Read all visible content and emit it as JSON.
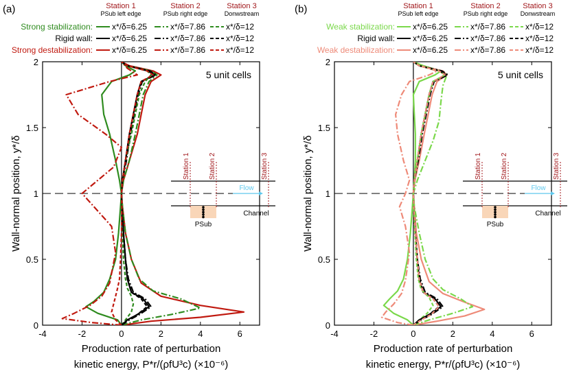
{
  "chart_data": [
    {
      "type": "line",
      "panel_label": "(a)",
      "annotation": "5 unit cells",
      "xlabel_line1": "Production rate of perturbation",
      "xlabel_line2": "kinetic energy, P*r/(ρfU³c) (×10⁻⁶)",
      "ylabel": "Wall-normal position, y*/δ",
      "xlim": [
        -4,
        7
      ],
      "ylim": [
        0,
        2
      ],
      "xticks": [
        "-4",
        "-2",
        "0",
        "2",
        "4",
        "6"
      ],
      "yticks": [
        "0",
        "0.5",
        "1",
        "1.5",
        "2"
      ],
      "stations": [
        {
          "title": "Station 1",
          "subtitle": "PSub left edge"
        },
        {
          "title": "Station 2",
          "subtitle": "PSub right edge"
        },
        {
          "title": "Station 3",
          "subtitle": "Donwstream"
        }
      ],
      "legend_rows": [
        {
          "label": "Strong stabilization:",
          "color": "#2e8b1e",
          "entries": [
            "x*/δ=6.25",
            "x*/δ=7.86",
            "x*/δ=12"
          ]
        },
        {
          "label": "Rigid wall:",
          "color": "#000000",
          "entries": [
            "x*/δ=6.25",
            "x*/δ=7.86",
            "x*/δ=12"
          ]
        },
        {
          "label": "Strong destabilization:",
          "color": "#c0190f",
          "entries": [
            "x*/δ=6.25",
            "x*/δ=7.86",
            "x*/δ=12"
          ]
        }
      ],
      "series": [
        {
          "name": "Strong stabilization x*/δ=6.25",
          "color": "#2e8b1e",
          "dash": "solid",
          "x": [
            0,
            -0.2,
            -1.2,
            -1.8,
            -1.4,
            -0.9,
            -0.6,
            -0.3,
            -0.15,
            -0.05,
            0,
            -0.1,
            -0.3,
            -0.6,
            -0.9,
            -1.0,
            -0.5,
            0.4,
            0.7,
            0.2,
            0
          ],
          "y": [
            0,
            0.04,
            0.09,
            0.14,
            0.18,
            0.25,
            0.35,
            0.5,
            0.7,
            0.9,
            1.0,
            1.1,
            1.25,
            1.45,
            1.6,
            1.75,
            1.85,
            1.9,
            1.93,
            1.97,
            2.0
          ]
        },
        {
          "name": "Rigid wall x*/δ=6.25",
          "color": "#000000",
          "dash": "solid",
          "x": [
            0,
            0.3,
            0.8,
            1.4,
            1.1,
            0.5,
            0.3,
            0.2,
            0.1,
            0.02,
            0,
            0.05,
            0.2,
            0.4,
            0.6,
            0.8,
            1.0,
            1.7,
            1.4,
            0.3,
            0
          ],
          "y": [
            0,
            0.04,
            0.08,
            0.14,
            0.2,
            0.25,
            0.35,
            0.5,
            0.7,
            0.9,
            1.0,
            1.1,
            1.25,
            1.45,
            1.6,
            1.75,
            1.85,
            1.9,
            1.93,
            1.97,
            2.0
          ]
        },
        {
          "name": "Strong destabilization x*/δ=6.25",
          "color": "#c0190f",
          "dash": "solid",
          "x": [
            0,
            1.5,
            4.0,
            6.2,
            4.0,
            2.0,
            1.0,
            0.5,
            0.2,
            0.05,
            0,
            0.1,
            0.4,
            0.8,
            1.0,
            1.2,
            1.5,
            2.0,
            1.6,
            0.4,
            0
          ],
          "y": [
            0,
            0.03,
            0.06,
            0.1,
            0.15,
            0.22,
            0.32,
            0.5,
            0.7,
            0.9,
            1.0,
            1.1,
            1.25,
            1.45,
            1.6,
            1.75,
            1.85,
            1.9,
            1.93,
            1.97,
            2.0
          ]
        },
        {
          "name": "Strong stabilization x*/δ=7.86",
          "color": "#2e8b1e",
          "dash": "dashdot",
          "x": [
            0,
            1.0,
            2.5,
            4.0,
            3.0,
            1.6,
            0.9,
            0.5,
            0.2,
            0.05,
            0,
            0.1,
            0.4,
            0.7,
            0.9,
            1.1,
            1.4,
            1.8,
            1.5,
            0.3,
            0
          ],
          "y": [
            0,
            0.04,
            0.08,
            0.13,
            0.2,
            0.26,
            0.35,
            0.5,
            0.7,
            0.9,
            1.0,
            1.1,
            1.25,
            1.45,
            1.6,
            1.75,
            1.85,
            1.9,
            1.93,
            1.97,
            2.0
          ]
        },
        {
          "name": "Rigid wall x*/δ=7.86",
          "color": "#000000",
          "dash": "dashdot",
          "x": [
            0,
            0.4,
            0.9,
            1.5,
            1.2,
            0.6,
            0.35,
            0.2,
            0.1,
            0.02,
            0,
            0.05,
            0.25,
            0.45,
            0.65,
            0.85,
            1.05,
            1.75,
            1.45,
            0.3,
            0
          ],
          "y": [
            0,
            0.04,
            0.08,
            0.14,
            0.2,
            0.25,
            0.35,
            0.5,
            0.7,
            0.9,
            1.0,
            1.1,
            1.25,
            1.45,
            1.6,
            1.75,
            1.85,
            1.9,
            1.93,
            1.97,
            2.0
          ]
        },
        {
          "name": "Strong destabilization x*/δ=7.86",
          "color": "#c0190f",
          "dash": "dashdot",
          "x": [
            0,
            -1.5,
            -3.0,
            -2.4,
            -1.6,
            -1.0,
            -0.6,
            -0.3,
            -0.5,
            -1.4,
            -2.0,
            -1.2,
            -0.4,
            0,
            -0.8,
            -2.2,
            -2.8,
            -0.6,
            0.8,
            0.3,
            0
          ],
          "y": [
            0,
            0.02,
            0.05,
            0.09,
            0.15,
            0.22,
            0.32,
            0.55,
            0.75,
            0.9,
            1.0,
            1.1,
            1.2,
            1.35,
            1.45,
            1.6,
            1.75,
            1.85,
            1.9,
            1.95,
            2.0
          ]
        },
        {
          "name": "Strong stabilization x*/δ=12",
          "color": "#2e8b1e",
          "dash": "dash",
          "x": [
            0,
            0.2,
            0.5,
            0.6,
            0.5,
            0.3,
            0.2,
            0.1,
            0.05,
            0.02,
            0,
            0.05,
            0.2,
            0.5,
            0.7,
            0.9,
            1.2,
            1.5,
            1.3,
            0.3,
            0
          ],
          "y": [
            0,
            0.04,
            0.1,
            0.16,
            0.22,
            0.28,
            0.35,
            0.5,
            0.7,
            0.9,
            1.0,
            1.1,
            1.25,
            1.45,
            1.6,
            1.75,
            1.85,
            1.9,
            1.93,
            1.97,
            2.0
          ]
        },
        {
          "name": "Rigid wall x*/δ=12",
          "color": "#000000",
          "dash": "dash",
          "x": [
            0,
            0.3,
            0.8,
            1.3,
            1.0,
            0.5,
            0.3,
            0.2,
            0.1,
            0.02,
            0,
            0.05,
            0.2,
            0.4,
            0.6,
            0.8,
            1.0,
            1.65,
            1.35,
            0.3,
            0
          ],
          "y": [
            0,
            0.04,
            0.08,
            0.14,
            0.2,
            0.25,
            0.35,
            0.5,
            0.7,
            0.9,
            1.0,
            1.1,
            1.25,
            1.45,
            1.6,
            1.75,
            1.85,
            1.9,
            1.93,
            1.97,
            2.0
          ]
        },
        {
          "name": "Strong destabilization x*/δ=12",
          "color": "#c0190f",
          "dash": "dash",
          "x": [
            0,
            -0.3,
            -0.5,
            -0.4,
            -0.3,
            -0.2,
            -0.1,
            -0.05,
            0,
            0.02,
            0,
            0.05,
            0.2,
            0.4,
            0.6,
            0.8,
            1.0,
            1.6,
            1.3,
            0.3,
            0
          ],
          "y": [
            0,
            0.04,
            0.1,
            0.16,
            0.22,
            0.28,
            0.35,
            0.5,
            0.7,
            0.9,
            1.0,
            1.1,
            1.25,
            1.45,
            1.6,
            1.75,
            1.85,
            1.9,
            1.93,
            1.97,
            2.0
          ]
        }
      ],
      "inset": {
        "stations": [
          "Station 1",
          "Station 2",
          "Station 3"
        ],
        "flow": "Flow",
        "channel": "Channel",
        "psub": "PSub"
      }
    },
    {
      "type": "line",
      "panel_label": "(b)",
      "annotation": "5 unit cells",
      "xlabel_line1": "Production rate of perturbation",
      "xlabel_line2": "kinetic energy, P*r/(ρfU³c) (×10⁻⁶)",
      "ylabel": "Wall-normal position, y*/δ",
      "xlim": [
        -4,
        7
      ],
      "ylim": [
        0,
        2
      ],
      "xticks": [
        "-4",
        "-2",
        "0",
        "2",
        "4",
        "6"
      ],
      "yticks": [
        "0",
        "0.5",
        "1",
        "1.5",
        "2"
      ],
      "stations": [
        {
          "title": "Station 1",
          "subtitle": "PSub left edge"
        },
        {
          "title": "Station 2",
          "subtitle": "PSub right edge"
        },
        {
          "title": "Station 3",
          "subtitle": "Donwstream"
        }
      ],
      "legend_rows": [
        {
          "label": "Weak stabilization:",
          "color": "#7ad84a",
          "entries": [
            "x*/δ=6.25",
            "x*/δ=7.86",
            "x*/δ=12"
          ]
        },
        {
          "label": "Rigid wall:",
          "color": "#000000",
          "entries": [
            "x*/δ=6.25",
            "x*/δ=7.86",
            "x*/δ=12"
          ]
        },
        {
          "label": "Weak destabilization:",
          "color": "#ee8a78",
          "entries": [
            "x*/δ=6.25",
            "x*/δ=7.86",
            "x*/δ=12"
          ]
        }
      ],
      "series": [
        {
          "name": "Weak stabilization x*/δ=6.25",
          "color": "#7ad84a",
          "dash": "solid",
          "x": [
            0,
            -0.3,
            -1.0,
            -1.5,
            -1.2,
            -0.8,
            -0.5,
            -0.3,
            -0.15,
            -0.05,
            0,
            0.05,
            0.1,
            0.1,
            0.05,
            0,
            0.3,
            1.1,
            1.4,
            0.5,
            0
          ],
          "y": [
            0,
            0.04,
            0.09,
            0.15,
            0.2,
            0.26,
            0.35,
            0.5,
            0.7,
            0.9,
            1.0,
            1.1,
            1.25,
            1.45,
            1.6,
            1.75,
            1.85,
            1.9,
            1.93,
            1.97,
            2.0
          ]
        },
        {
          "name": "Rigid wall x*/δ=6.25",
          "color": "#000000",
          "dash": "solid",
          "x": [
            0,
            0.3,
            0.8,
            1.4,
            1.1,
            0.5,
            0.3,
            0.2,
            0.1,
            0.02,
            0,
            0.05,
            0.2,
            0.4,
            0.6,
            0.8,
            1.0,
            1.7,
            1.4,
            0.3,
            0
          ],
          "y": [
            0,
            0.04,
            0.08,
            0.14,
            0.2,
            0.25,
            0.35,
            0.5,
            0.7,
            0.9,
            1.0,
            1.1,
            1.25,
            1.45,
            1.6,
            1.75,
            1.85,
            1.9,
            1.93,
            1.97,
            2.0
          ]
        },
        {
          "name": "Weak destabilization x*/δ=6.25",
          "color": "#ee8a78",
          "dash": "solid",
          "x": [
            0,
            1.2,
            2.6,
            3.6,
            2.5,
            1.5,
            0.8,
            0.4,
            0.15,
            0.05,
            0,
            0.08,
            0.3,
            0.55,
            0.75,
            0.95,
            1.2,
            1.7,
            1.5,
            0.3,
            0
          ],
          "y": [
            0,
            0.03,
            0.07,
            0.12,
            0.18,
            0.24,
            0.33,
            0.5,
            0.7,
            0.9,
            1.0,
            1.1,
            1.25,
            1.45,
            1.6,
            1.75,
            1.85,
            1.9,
            1.93,
            1.97,
            2.0
          ]
        },
        {
          "name": "Weak stabilization x*/δ=7.86",
          "color": "#7ad84a",
          "dash": "dashdot",
          "x": [
            0,
            0.8,
            2.0,
            3.0,
            2.4,
            1.5,
            1.0,
            0.6,
            0.3,
            0.05,
            0,
            0.2,
            0.6,
            1.0,
            1.3,
            1.4,
            1.5,
            1.7,
            1.4,
            0.3,
            0
          ],
          "y": [
            0,
            0.04,
            0.09,
            0.14,
            0.2,
            0.27,
            0.35,
            0.5,
            0.7,
            0.9,
            1.0,
            1.1,
            1.25,
            1.4,
            1.55,
            1.7,
            1.82,
            1.9,
            1.93,
            1.97,
            2.0
          ]
        },
        {
          "name": "Rigid wall x*/δ=7.86",
          "color": "#000000",
          "dash": "dashdot",
          "x": [
            0,
            0.4,
            0.9,
            1.5,
            1.2,
            0.6,
            0.35,
            0.2,
            0.1,
            0.02,
            0,
            0.05,
            0.25,
            0.45,
            0.65,
            0.85,
            1.05,
            1.75,
            1.45,
            0.3,
            0
          ],
          "y": [
            0,
            0.04,
            0.08,
            0.14,
            0.2,
            0.25,
            0.35,
            0.5,
            0.7,
            0.9,
            1.0,
            1.1,
            1.25,
            1.45,
            1.6,
            1.75,
            1.85,
            1.9,
            1.93,
            1.97,
            2.0
          ]
        },
        {
          "name": "Weak destabilization x*/δ=7.86",
          "color": "#ee8a78",
          "dash": "dashdot",
          "x": [
            0,
            -0.8,
            -1.6,
            -1.4,
            -1.0,
            -0.6,
            -0.4,
            -0.2,
            -0.4,
            -0.7,
            -0.4,
            -0.2,
            -0.5,
            -0.8,
            -0.9,
            -0.6,
            -0.2,
            0.8,
            1.2,
            0.3,
            0
          ],
          "y": [
            0,
            0.02,
            0.06,
            0.1,
            0.16,
            0.24,
            0.34,
            0.55,
            0.75,
            0.9,
            1.0,
            1.1,
            1.25,
            1.45,
            1.6,
            1.75,
            1.85,
            1.9,
            1.93,
            1.97,
            2.0
          ]
        },
        {
          "name": "Weak stabilization x*/δ=12",
          "color": "#7ad84a",
          "dash": "dash",
          "x": [
            0,
            0.3,
            0.7,
            1.0,
            0.8,
            0.4,
            0.25,
            0.15,
            0.08,
            0.02,
            0,
            0.05,
            0.2,
            0.4,
            0.6,
            0.8,
            1.0,
            1.6,
            1.3,
            0.3,
            0
          ],
          "y": [
            0,
            0.04,
            0.09,
            0.15,
            0.21,
            0.27,
            0.35,
            0.5,
            0.7,
            0.9,
            1.0,
            1.1,
            1.25,
            1.45,
            1.6,
            1.75,
            1.85,
            1.9,
            1.93,
            1.97,
            2.0
          ]
        },
        {
          "name": "Rigid wall x*/δ=12",
          "color": "#000000",
          "dash": "dash",
          "x": [
            0,
            0.3,
            0.8,
            1.3,
            1.0,
            0.5,
            0.3,
            0.2,
            0.1,
            0.02,
            0,
            0.05,
            0.2,
            0.4,
            0.6,
            0.8,
            1.0,
            1.65,
            1.35,
            0.3,
            0
          ],
          "y": [
            0,
            0.04,
            0.08,
            0.14,
            0.2,
            0.25,
            0.35,
            0.5,
            0.7,
            0.9,
            1.0,
            1.1,
            1.25,
            1.45,
            1.6,
            1.75,
            1.85,
            1.9,
            1.93,
            1.97,
            2.0
          ]
        },
        {
          "name": "Weak destabilization x*/δ=12",
          "color": "#ee8a78",
          "dash": "dash",
          "x": [
            0,
            0.4,
            0.9,
            1.3,
            1.0,
            0.5,
            0.3,
            0.2,
            0.1,
            0.02,
            0,
            0.05,
            0.2,
            0.4,
            0.6,
            0.8,
            1.0,
            1.6,
            1.3,
            0.3,
            0
          ],
          "y": [
            0,
            0.04,
            0.08,
            0.14,
            0.2,
            0.25,
            0.35,
            0.5,
            0.7,
            0.9,
            1.0,
            1.1,
            1.25,
            1.45,
            1.6,
            1.75,
            1.85,
            1.9,
            1.93,
            1.97,
            2.0
          ]
        }
      ],
      "inset": {
        "stations": [
          "Station 1",
          "Station 2",
          "Station 3"
        ],
        "flow": "Flow",
        "channel": "Channel",
        "psub": "PSub"
      }
    }
  ]
}
